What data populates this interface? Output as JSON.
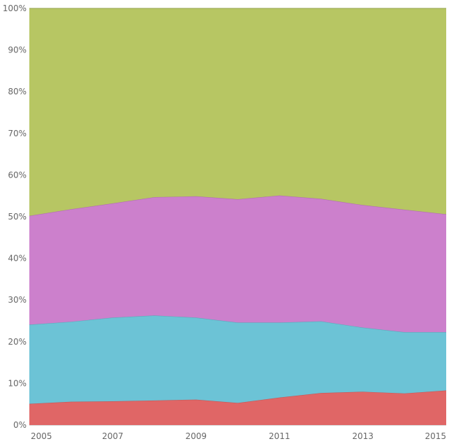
{
  "chart_data": {
    "type": "area",
    "stacked": true,
    "normalized": true,
    "x": [
      2005,
      2006,
      2007,
      2008,
      2009,
      2010,
      2011,
      2012,
      2013,
      2014,
      2015
    ],
    "x_tick_labels": [
      "2005",
      "2007",
      "2009",
      "2011",
      "2013",
      "2015"
    ],
    "y_tick_labels": [
      "0%",
      "10%",
      "20%",
      "30%",
      "40%",
      "50%",
      "60%",
      "70%",
      "80%",
      "90%",
      "100%"
    ],
    "ylim": [
      0,
      100
    ],
    "grid": true,
    "legend": "none",
    "series": [
      {
        "color": "#e06666",
        "values": [
          5.1,
          5.6,
          5.7,
          5.9,
          6.1,
          5.3,
          6.6,
          7.7,
          8.0,
          7.6,
          8.3
        ]
      },
      {
        "color": "#6cc3d6",
        "values": [
          19.0,
          19.2,
          20.1,
          20.4,
          19.7,
          19.3,
          18.0,
          17.2,
          15.4,
          14.7,
          14.0
        ]
      },
      {
        "color": "#cc80cc",
        "values": [
          26.1,
          27.0,
          27.4,
          28.4,
          29.1,
          29.6,
          30.5,
          29.4,
          29.4,
          29.4,
          28.3
        ]
      },
      {
        "color": "#b7c663",
        "values": [
          49.8,
          48.2,
          46.8,
          45.3,
          45.1,
          45.8,
          44.9,
          45.7,
          47.2,
          48.3,
          49.4
        ]
      }
    ]
  }
}
